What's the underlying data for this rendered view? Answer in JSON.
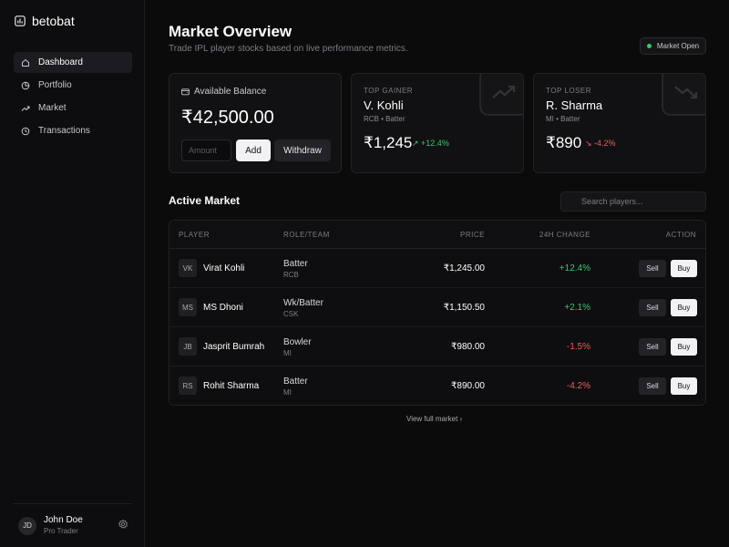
{
  "app": {
    "name": "betobat"
  },
  "sidebar": {
    "items": [
      {
        "label": "Dashboard",
        "icon": "home-icon",
        "active": true
      },
      {
        "label": "Portfolio",
        "icon": "pie-chart-icon",
        "active": false
      },
      {
        "label": "Market",
        "icon": "trend-up-icon",
        "active": false
      },
      {
        "label": "Transactions",
        "icon": "history-icon",
        "active": false
      }
    ],
    "user": {
      "initials": "JD",
      "name": "John Doe",
      "role": "Pro Trader",
      "icon": "gear-icon"
    }
  },
  "header": {
    "title": "Market Overview",
    "subtitle": "Trade IPL player stocks based on live performance metrics.",
    "status": "Market Open",
    "status_color": "#3ec46d"
  },
  "balance": {
    "label": "Available Balance",
    "value": "₹42,500.00",
    "amount_placeholder": "Amount",
    "add_label": "Add",
    "withdraw_label": "Withdraw"
  },
  "top_gainer": {
    "label": "TOP GAINER",
    "name": "V. Kohli",
    "team": "RCB • Batter",
    "price": "₹1,245",
    "change": "↗ +12.4%"
  },
  "top_loser": {
    "label": "TOP LOSER",
    "name": "R. Sharma",
    "team": "MI • Batter",
    "price": "₹890",
    "change": "↘ -4.2%"
  },
  "market": {
    "title": "Active Market",
    "search_placeholder": "Search players...",
    "columns": [
      "PLAYER",
      "ROLE/TEAM",
      "PRICE",
      "24H CHANGE",
      "ACTION"
    ],
    "rows": [
      {
        "initials": "VK",
        "player": "Virat Kohli",
        "role": "Batter",
        "team": "RCB",
        "price": "₹1,245.00",
        "change": "+12.4%",
        "direction": "up"
      },
      {
        "initials": "MS",
        "player": "MS Dhoni",
        "role": "Wk/Batter",
        "team": "CSK",
        "price": "₹1,150.50",
        "change": "+2.1%",
        "direction": "up"
      },
      {
        "initials": "JB",
        "player": "Jasprit Bumrah",
        "role": "Bowler",
        "team": "MI",
        "price": "₹980.00",
        "change": "-1.5%",
        "direction": "down"
      },
      {
        "initials": "RS",
        "player": "Rohit Sharma",
        "role": "Batter",
        "team": "MI",
        "price": "₹890.00",
        "change": "-4.2%",
        "direction": "down"
      }
    ],
    "sell_label": "Sell",
    "buy_label": "Buy",
    "view_more": "View full market ›"
  },
  "colors": {
    "positive": "#3ec46d",
    "negative": "#ef5b5b",
    "background": "#0b0b0c"
  }
}
